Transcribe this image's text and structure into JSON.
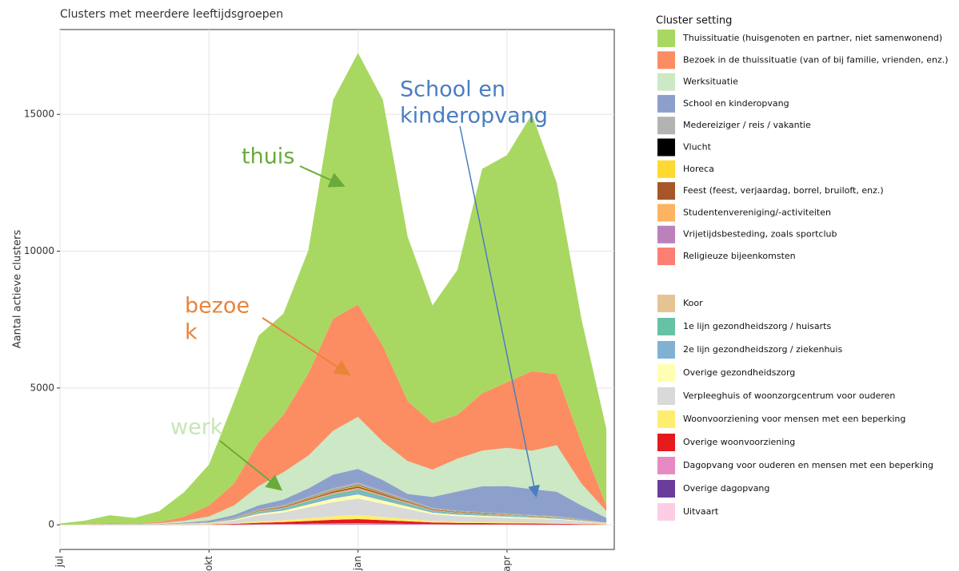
{
  "chart_data": {
    "type": "area",
    "title": "Clusters met meerdere leeftijdsgroepen",
    "y_label": "Aantal actieve clusters",
    "legend_title": "Cluster setting",
    "categories": [
      "jul",
      null,
      null,
      null,
      null,
      null,
      "okt",
      null,
      null,
      null,
      null,
      null,
      "jan",
      null,
      null,
      null,
      null,
      null,
      "apr",
      null,
      null,
      null,
      null
    ],
    "ylim": [
      -900,
      18100
    ],
    "yticks": [
      0,
      5000,
      10000,
      15000
    ],
    "grid": true,
    "stacked": true,
    "annotations": [
      [
        "thuis"
      ],
      [
        "bezoe",
        "k"
      ],
      [
        "werk"
      ],
      [
        "School en",
        "kinderopvang"
      ]
    ],
    "series": [
      {
        "name": "Thuissituatie (huisgenoten en partner, niet samenwonend)",
        "color": "#a9d862",
        "values": [
          50,
          130,
          290,
          200,
          400,
          900,
          1500,
          3000,
          3900,
          3700,
          4500,
          8000,
          9200,
          9000,
          6000,
          4300,
          5300,
          8200,
          8300,
          9400,
          7000,
          4500,
          2800
        ]
      },
      {
        "name": "Bezoek in de thuissituatie (van of bij familie, vrienden, enz.)",
        "color": "#fc8d62",
        "values": [
          0,
          10,
          30,
          20,
          40,
          150,
          400,
          800,
          1600,
          2100,
          3000,
          4100,
          4100,
          3500,
          2200,
          1700,
          1600,
          2100,
          2400,
          2900,
          2600,
          1500,
          200
        ]
      },
      {
        "name": "Werksituatie",
        "color": "#cce8c4",
        "values": [
          0,
          5,
          15,
          15,
          30,
          70,
          150,
          350,
          700,
          1000,
          1200,
          1600,
          1900,
          1400,
          1200,
          1000,
          1200,
          1300,
          1400,
          1400,
          1700,
          800,
          250
        ]
      },
      {
        "name": "School en kinderopvang",
        "color": "#8da0cb",
        "values": [
          0,
          0,
          5,
          5,
          10,
          30,
          50,
          100,
          150,
          200,
          300,
          500,
          500,
          400,
          200,
          400,
          700,
          950,
          1000,
          950,
          900,
          500,
          150
        ]
      },
      {
        "name": "Medereiziger / reis / vakantie",
        "color": "#b3b3b3",
        "values": [
          0,
          1,
          1,
          1,
          2,
          3,
          6,
          15,
          33,
          42,
          60,
          78,
          90,
          72,
          54,
          36,
          30,
          27,
          24,
          21,
          18,
          12,
          6
        ]
      },
      {
        "name": "Vlucht",
        "color": "#000000",
        "values": [
          0,
          0,
          0,
          0,
          0,
          0,
          1,
          2,
          5,
          7,
          10,
          13,
          15,
          12,
          9,
          6,
          5,
          4,
          4,
          3,
          3,
          2,
          1
        ]
      },
      {
        "name": "Horeca",
        "color": "#ffd92f",
        "values": [
          0,
          1,
          1,
          1,
          1,
          1,
          2,
          5,
          11,
          14,
          20,
          26,
          30,
          24,
          18,
          12,
          10,
          9,
          8,
          7,
          6,
          4,
          2
        ]
      },
      {
        "name": "Feest (feest, verjaardag, borrel, bruiloft, enz.)",
        "color": "#a65628",
        "values": [
          0,
          1,
          1,
          1,
          1,
          2,
          4,
          10,
          22,
          28,
          40,
          52,
          60,
          48,
          36,
          24,
          20,
          18,
          16,
          14,
          12,
          8,
          4
        ]
      },
      {
        "name": "Studentenvereniging/-activiteiten",
        "color": "#fdb462",
        "values": [
          0,
          0,
          0,
          0,
          0,
          0,
          1,
          2,
          5,
          7,
          10,
          13,
          15,
          12,
          9,
          6,
          5,
          4,
          4,
          3,
          3,
          2,
          1
        ]
      },
      {
        "name": "Vrijetijdsbesteding, zoals sportclub",
        "color": "#bc80bd",
        "values": [
          0,
          0,
          0,
          0,
          0,
          0,
          1,
          2,
          5,
          7,
          10,
          13,
          15,
          12,
          9,
          6,
          5,
          4,
          4,
          3,
          3,
          2,
          1
        ]
      },
      {
        "name": "Religieuze bijeenkomsten",
        "color": "#fb8072",
        "values": [
          0,
          0,
          0,
          0,
          0,
          0,
          1,
          2,
          5,
          7,
          10,
          13,
          15,
          12,
          9,
          6,
          5,
          4,
          4,
          3,
          3,
          2,
          1
        ]
      },
      {
        "name": "Koor",
        "color": "#e5c494",
        "values": [
          0,
          0,
          0,
          0,
          0,
          0,
          1,
          2,
          5,
          7,
          10,
          13,
          15,
          12,
          9,
          6,
          5,
          4,
          4,
          3,
          3,
          2,
          1
        ]
      },
      {
        "name": "1e lijn gezondheidszorg / huisarts",
        "color": "#66c2a5",
        "values": [
          0,
          0,
          1,
          1,
          1,
          3,
          6,
          15,
          33,
          42,
          60,
          78,
          90,
          72,
          54,
          36,
          30,
          27,
          24,
          21,
          18,
          12,
          6
        ]
      },
      {
        "name": "2e lijn gezondheidszorg / ziekenhuis",
        "color": "#80b1d3",
        "values": [
          0,
          0,
          1,
          1,
          1,
          3,
          6,
          15,
          33,
          42,
          60,
          78,
          90,
          72,
          54,
          36,
          30,
          27,
          24,
          21,
          18,
          12,
          6
        ]
      },
      {
        "name": "Overige gezondheidszorg",
        "color": "#ffffb3",
        "values": [
          0,
          0,
          1,
          1,
          2,
          5,
          10,
          25,
          55,
          70,
          100,
          130,
          150,
          120,
          90,
          60,
          50,
          45,
          40,
          35,
          30,
          20,
          10
        ]
      },
      {
        "name": "Verpleeghuis of woonzorgcentrum voor ouderen",
        "color": "#d9d9d9",
        "values": [
          0,
          2,
          4,
          4,
          8,
          20,
          40,
          100,
          220,
          280,
          400,
          520,
          600,
          480,
          360,
          240,
          200,
          180,
          160,
          140,
          120,
          80,
          40
        ]
      },
      {
        "name": "Woonvoorziening voor mensen met een beperking",
        "color": "#ffed6f",
        "values": [
          0,
          0,
          1,
          1,
          2,
          5,
          10,
          25,
          55,
          70,
          100,
          130,
          150,
          120,
          90,
          60,
          50,
          45,
          40,
          35,
          30,
          20,
          10
        ]
      },
      {
        "name": "Overige woonvoorziening",
        "color": "#e41a1c",
        "values": [
          0,
          0,
          1,
          1,
          2,
          5,
          10,
          25,
          55,
          70,
          100,
          130,
          150,
          120,
          90,
          60,
          50,
          45,
          40,
          35,
          30,
          20,
          10
        ]
      },
      {
        "name": "Dagopvang voor ouderen en mensen met een beperking",
        "color": "#e78ac3",
        "values": [
          0,
          0,
          0,
          0,
          0,
          1,
          2,
          5,
          11,
          14,
          20,
          26,
          30,
          24,
          18,
          12,
          10,
          9,
          8,
          7,
          6,
          4,
          2
        ]
      },
      {
        "name": "Overige dagopvang",
        "color": "#6a3d9a",
        "values": [
          0,
          0,
          0,
          0,
          0,
          0,
          1,
          2,
          5,
          7,
          10,
          13,
          15,
          12,
          9,
          6,
          5,
          4,
          4,
          3,
          3,
          2,
          1
        ]
      },
      {
        "name": "Uitvaart",
        "color": "#fccde5",
        "values": [
          0,
          0,
          0,
          0,
          0,
          0,
          1,
          2,
          5,
          7,
          10,
          13,
          15,
          12,
          9,
          6,
          5,
          4,
          4,
          3,
          3,
          2,
          1
        ]
      }
    ]
  }
}
